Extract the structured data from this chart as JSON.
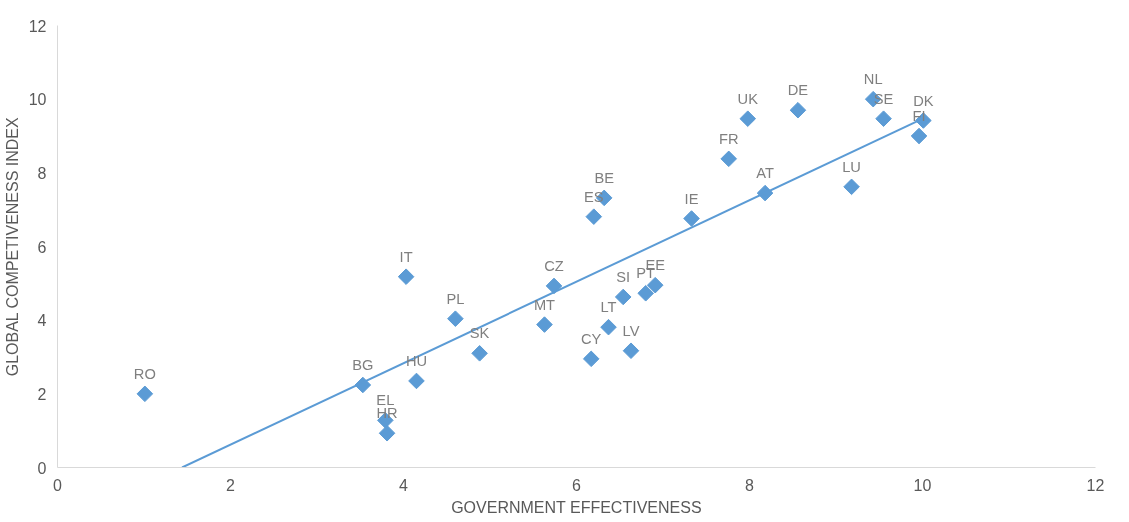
{
  "chart_data": {
    "type": "scatter",
    "xlabel": "GOVERNMENT EFFECTIVENESS",
    "ylabel": "GLOBAL COMPETIVENESS INDEX",
    "xlim": [
      0,
      12
    ],
    "ylim": [
      0,
      12
    ],
    "xticks": [
      0,
      2,
      4,
      6,
      8,
      10,
      12
    ],
    "yticks": [
      0,
      2,
      4,
      6,
      8,
      10,
      12
    ],
    "grid": false,
    "marker": "diamond",
    "series": [
      {
        "color": "#5b9bd5",
        "x": [
          1.01,
          3.53,
          3.79,
          3.81,
          4.15,
          4.03,
          4.6,
          4.88,
          5.63,
          5.74,
          6.2,
          6.32,
          6.17,
          6.37,
          6.54,
          6.8,
          6.91,
          6.63,
          7.33,
          8.18,
          7.76,
          7.98,
          8.56,
          9.43,
          9.55,
          10.01,
          9.96,
          9.18
        ],
        "values": [
          2.0,
          2.24,
          1.28,
          0.93,
          2.35,
          5.18,
          4.04,
          3.1,
          3.88,
          4.93,
          6.81,
          7.32,
          2.95,
          3.81,
          4.63,
          4.73,
          4.95,
          3.17,
          6.76,
          7.45,
          8.38,
          9.47,
          9.7,
          10.0,
          9.47,
          9.42,
          9.0,
          7.62
        ]
      },
      {
        "type": "line",
        "marker": "none",
        "color": "#5b9bd5",
        "x": [
          1.44,
          10.01
        ],
        "values": [
          0,
          9.48
        ]
      }
    ],
    "annotations": [
      {
        "text": "RO",
        "x": 1.01,
        "y": 2.0
      },
      {
        "text": "BG",
        "x": 3.53,
        "y": 2.24
      },
      {
        "text": "EL",
        "x": 3.79,
        "y": 1.28
      },
      {
        "text": "HR",
        "x": 3.81,
        "y": 0.93
      },
      {
        "text": "HU",
        "x": 4.15,
        "y": 2.35
      },
      {
        "text": "IT",
        "x": 4.03,
        "y": 5.18
      },
      {
        "text": "PL",
        "x": 4.6,
        "y": 4.04
      },
      {
        "text": "SK",
        "x": 4.88,
        "y": 3.1
      },
      {
        "text": "MT",
        "x": 5.63,
        "y": 3.88
      },
      {
        "text": "CZ",
        "x": 5.74,
        "y": 4.93
      },
      {
        "text": "ES",
        "x": 6.2,
        "y": 6.81
      },
      {
        "text": "BE",
        "x": 6.32,
        "y": 7.32
      },
      {
        "text": "CY",
        "x": 6.17,
        "y": 2.95
      },
      {
        "text": "LT",
        "x": 6.37,
        "y": 3.81
      },
      {
        "text": "SI",
        "x": 6.54,
        "y": 4.63
      },
      {
        "text": "PT",
        "x": 6.8,
        "y": 4.73
      },
      {
        "text": "EE",
        "x": 6.91,
        "y": 4.95
      },
      {
        "text": "LV",
        "x": 6.63,
        "y": 3.17
      },
      {
        "text": "IE",
        "x": 7.33,
        "y": 6.76
      },
      {
        "text": "AT",
        "x": 8.18,
        "y": 7.45
      },
      {
        "text": "FR",
        "x": 7.76,
        "y": 8.38
      },
      {
        "text": "UK",
        "x": 7.98,
        "y": 9.47
      },
      {
        "text": "DE",
        "x": 8.56,
        "y": 9.7
      },
      {
        "text": "NL",
        "x": 9.43,
        "y": 10.0
      },
      {
        "text": "SE",
        "x": 9.55,
        "y": 9.47
      },
      {
        "text": "DK",
        "x": 10.01,
        "y": 9.42
      },
      {
        "text": "FI",
        "x": 9.96,
        "y": 9.0
      },
      {
        "text": "LU",
        "x": 9.18,
        "y": 7.62
      }
    ]
  }
}
